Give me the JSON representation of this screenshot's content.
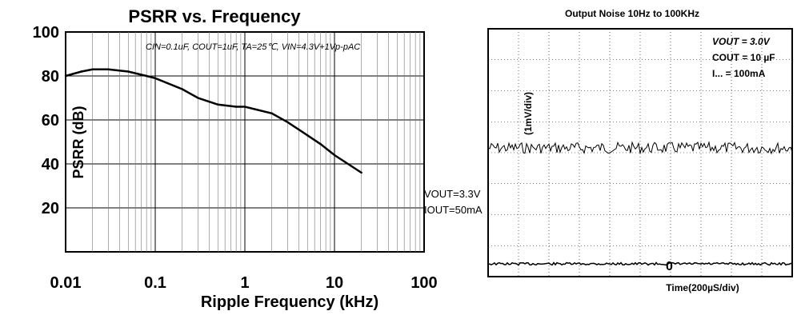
{
  "chart_data": [
    {
      "type": "line",
      "title": "PSRR vs. Frequency",
      "xlabel": "Ripple Frequency (kHz)",
      "ylabel": "PSRR (dB)",
      "x_scale": "log",
      "xlim": [
        0.01,
        100
      ],
      "ylim": [
        0,
        100
      ],
      "x_ticks": [
        "0.01",
        "0.1",
        "1",
        "10",
        "100"
      ],
      "y_ticks": [
        "100",
        "80",
        "60",
        "40",
        "20"
      ],
      "grid": true,
      "conditions": "CIN=0.1uF, COUT=1uF, TA=25℃, VIN=4.3V+1Vp-pAC",
      "annotation_lines": [
        "VOUT=3.3V",
        "IOUT=50mA"
      ],
      "series": [
        {
          "x": [
            0.01,
            0.015,
            0.02,
            0.03,
            0.05,
            0.08,
            0.1,
            0.2,
            0.3,
            0.5,
            0.8,
            1,
            2,
            3,
            5,
            7,
            10,
            20
          ],
          "y": [
            80,
            82,
            83,
            83,
            82,
            80,
            79,
            74,
            70,
            67,
            66,
            66,
            63,
            59,
            53,
            49,
            44,
            36
          ]
        }
      ]
    },
    {
      "type": "line",
      "title": "Output Noise 10Hz to 100KHz",
      "xlabel": "Time(200µS/div)",
      "ylabel": "(1mV/div)",
      "y_tick_zero": "0",
      "annotation_lines": [
        "VOUT = 3.0V",
        "COUT = 10 µF",
        "I... = 100mA"
      ],
      "grid": true
    }
  ]
}
